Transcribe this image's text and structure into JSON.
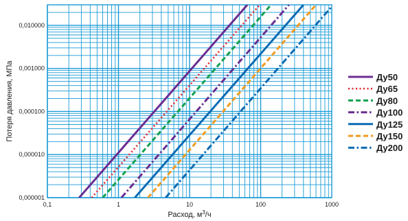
{
  "chart_data": {
    "type": "line",
    "xscale": "log",
    "yscale": "log",
    "xlim": [
      0.1,
      1000
    ],
    "ylim": [
      1e-06,
      0.03
    ],
    "xlabel_prefix": "Расход, м",
    "xlabel_sup": "3",
    "xlabel_suffix": "/ч",
    "ylabel": "Потеря давления, МПа",
    "x_ticks": [
      {
        "value": 0.1,
        "label": "0,1"
      },
      {
        "value": 1,
        "label": "1"
      },
      {
        "value": 10,
        "label": "10"
      },
      {
        "value": 100,
        "label": "100"
      },
      {
        "value": 1000,
        "label": "1000"
      }
    ],
    "y_ticks": [
      {
        "value": 1e-06,
        "label": "0,000001"
      },
      {
        "value": 1e-05,
        "label": "0,000010"
      },
      {
        "value": 0.0001,
        "label": "0,000100"
      },
      {
        "value": 0.001,
        "label": "0,001000"
      },
      {
        "value": 0.01,
        "label": "0,010000"
      }
    ],
    "grid": true,
    "grid_color": "#1a9ad6",
    "legend_position": "right",
    "series": [
      {
        "name": "Ду50",
        "color": "#6a2d91",
        "dash": "solid",
        "x": [
          0.28,
          65
        ],
        "y": [
          1e-06,
          0.03
        ]
      },
      {
        "name": "Ду65",
        "color": "#e0262c",
        "dash": "dotted",
        "x": [
          0.42,
          97
        ],
        "y": [
          1e-06,
          0.03
        ]
      },
      {
        "name": "Ду80",
        "color": "#10a04d",
        "dash": "dashed",
        "x": [
          0.6,
          140
        ],
        "y": [
          1e-06,
          0.03
        ]
      },
      {
        "name": "Ду100",
        "color": "#6a2d91",
        "dash": "dashdot",
        "x": [
          1.1,
          250
        ],
        "y": [
          1e-06,
          0.03
        ]
      },
      {
        "name": "Ду125",
        "color": "#0b6ab3",
        "dash": "solid",
        "x": [
          1.7,
          400
        ],
        "y": [
          1e-06,
          0.03
        ]
      },
      {
        "name": "Ду150",
        "color": "#f39a1e",
        "dash": "dashed",
        "x": [
          2.6,
          600
        ],
        "y": [
          1e-06,
          0.03
        ]
      },
      {
        "name": "Ду200",
        "color": "#0b6ab3",
        "dash": "dashdot",
        "x": [
          4.6,
          1050
        ],
        "y": [
          1e-06,
          0.03
        ]
      }
    ]
  }
}
